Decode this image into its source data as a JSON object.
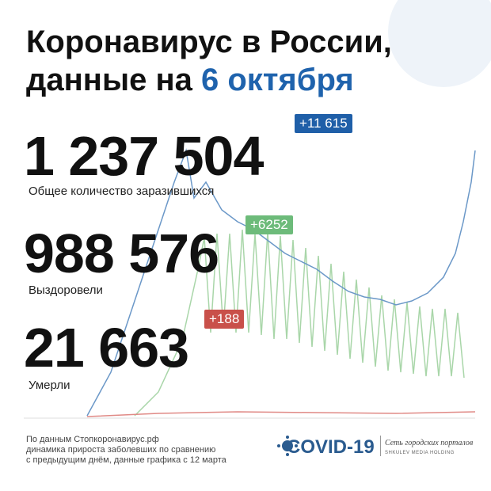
{
  "header": {
    "title_line1": "Коронавирус в России,",
    "title_line2": "данные на",
    "date": "6 октября"
  },
  "stats": [
    {
      "value": "1 237 504",
      "delta": "+11 615",
      "label": "Общее количество заразившихся"
    },
    {
      "value": "988 576",
      "delta": "+6252",
      "label": "Выздоровели"
    },
    {
      "value": "21 663",
      "delta": "+188",
      "label": "Умерли"
    }
  ],
  "footer": {
    "source": [
      "По данным Стопкоронавирус.рф",
      "динамика прироста заболевших по сравнению",
      "с предыдущим днём, данные графика с 12 марта"
    ],
    "logo": "COVID-19",
    "network": "Сеть городских порталов",
    "holding": "SHKULEV MEDIA HOLDING"
  }
}
